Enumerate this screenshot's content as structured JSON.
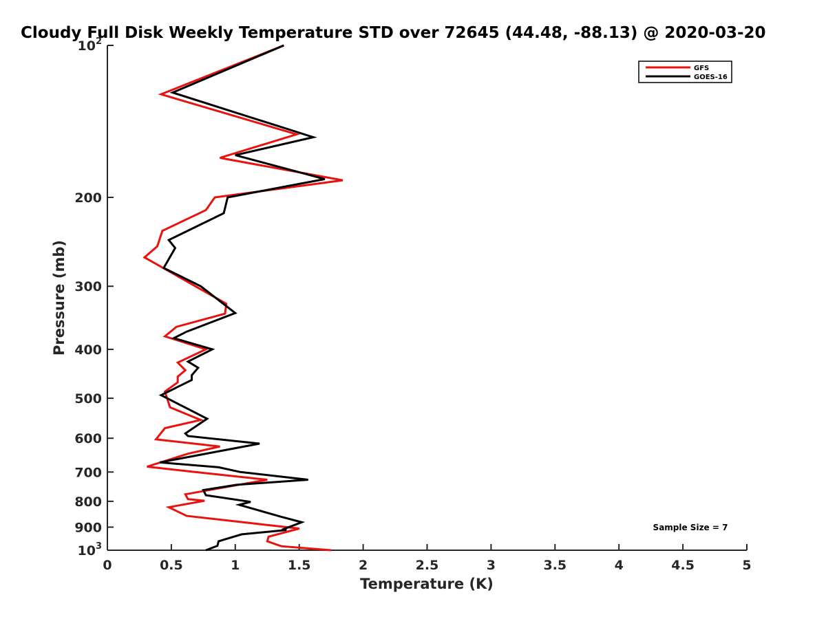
{
  "chart_data": {
    "type": "line",
    "title": "Cloudy Full Disk Weekly Temperature STD over 72645 (44.48, -88.13) @ 2020-03-20",
    "xlabel": "Temperature (K)",
    "ylabel": "Pressure (mb)",
    "xlim": [
      0,
      5
    ],
    "ylim": [
      100,
      1000
    ],
    "yscale": "log",
    "yreversed": true,
    "x_ticks": [
      0,
      0.5,
      1,
      1.5,
      2,
      2.5,
      3,
      3.5,
      4,
      4.5,
      5
    ],
    "x_tick_labels": [
      "0",
      "0.5",
      "1",
      "1.5",
      "2",
      "2.5",
      "3",
      "3.5",
      "4",
      "4.5",
      "5"
    ],
    "y_ticks": [
      {
        "value": 100,
        "base": "10",
        "exp": "2"
      },
      {
        "value": 200,
        "label": "200"
      },
      {
        "value": 300,
        "label": "300"
      },
      {
        "value": 400,
        "label": "400"
      },
      {
        "value": 500,
        "label": "500"
      },
      {
        "value": 600,
        "label": "600"
      },
      {
        "value": 700,
        "label": "700"
      },
      {
        "value": 800,
        "label": "800"
      },
      {
        "value": 900,
        "label": "900"
      },
      {
        "value": 1000,
        "base": "10",
        "exp": "3"
      }
    ],
    "legend_position": "top-right",
    "grid": false,
    "annotation": "Sample Size = 7",
    "series": [
      {
        "name": "GFS",
        "color": "#e8120f",
        "points": [
          [
            1.38,
            100
          ],
          [
            0.42,
            125
          ],
          [
            1.48,
            150
          ],
          [
            0.88,
            167
          ],
          [
            1.84,
            185
          ],
          [
            0.84,
            200
          ],
          [
            0.77,
            212
          ],
          [
            0.43,
            233
          ],
          [
            0.39,
            250
          ],
          [
            0.29,
            263
          ],
          [
            0.93,
            325
          ],
          [
            0.92,
            340
          ],
          [
            0.54,
            361
          ],
          [
            0.45,
            377
          ],
          [
            0.77,
            400
          ],
          [
            0.55,
            425
          ],
          [
            0.61,
            440
          ],
          [
            0.55,
            453
          ],
          [
            0.55,
            465
          ],
          [
            0.45,
            485
          ],
          [
            0.49,
            521
          ],
          [
            0.73,
            552
          ],
          [
            0.45,
            573
          ],
          [
            0.38,
            603
          ],
          [
            0.88,
            623
          ],
          [
            0.63,
            644
          ],
          [
            0.31,
            683
          ],
          [
            0.66,
            699
          ],
          [
            1.25,
            725
          ],
          [
            0.61,
            775
          ],
          [
            0.63,
            792
          ],
          [
            0.76,
            798
          ],
          [
            0.48,
            822
          ],
          [
            0.62,
            855
          ],
          [
            1.5,
            906
          ],
          [
            1.26,
            940
          ],
          [
            1.25,
            960
          ],
          [
            1.36,
            982
          ],
          [
            1.75,
            1000
          ]
        ]
      },
      {
        "name": "GOES-16",
        "color": "#000000",
        "points": [
          [
            1.38,
            100
          ],
          [
            0.51,
            124
          ],
          [
            1.61,
            152
          ],
          [
            1.0,
            165
          ],
          [
            1.7,
            184
          ],
          [
            0.94,
            200
          ],
          [
            0.91,
            215
          ],
          [
            0.48,
            243
          ],
          [
            0.53,
            252
          ],
          [
            0.44,
            276
          ],
          [
            0.73,
            300
          ],
          [
            1.0,
            339
          ],
          [
            0.62,
            369
          ],
          [
            0.52,
            380
          ],
          [
            0.82,
            400
          ],
          [
            0.63,
            423
          ],
          [
            0.71,
            435
          ],
          [
            0.66,
            450
          ],
          [
            0.66,
            460
          ],
          [
            0.42,
            493
          ],
          [
            0.78,
            549
          ],
          [
            0.64,
            580
          ],
          [
            0.61,
            587
          ],
          [
            0.63,
            594
          ],
          [
            1.19,
            615
          ],
          [
            0.41,
            670
          ],
          [
            0.87,
            685
          ],
          [
            1.04,
            700
          ],
          [
            1.57,
            725
          ],
          [
            1.01,
            742
          ],
          [
            0.75,
            760
          ],
          [
            0.77,
            778
          ],
          [
            1.12,
            802
          ],
          [
            1.03,
            813
          ],
          [
            1.37,
            860
          ],
          [
            1.52,
            880
          ],
          [
            1.38,
            908
          ],
          [
            1.4,
            912
          ],
          [
            1.05,
            930
          ],
          [
            0.87,
            960
          ],
          [
            0.86,
            980
          ],
          [
            0.77,
            1000
          ]
        ]
      }
    ]
  }
}
